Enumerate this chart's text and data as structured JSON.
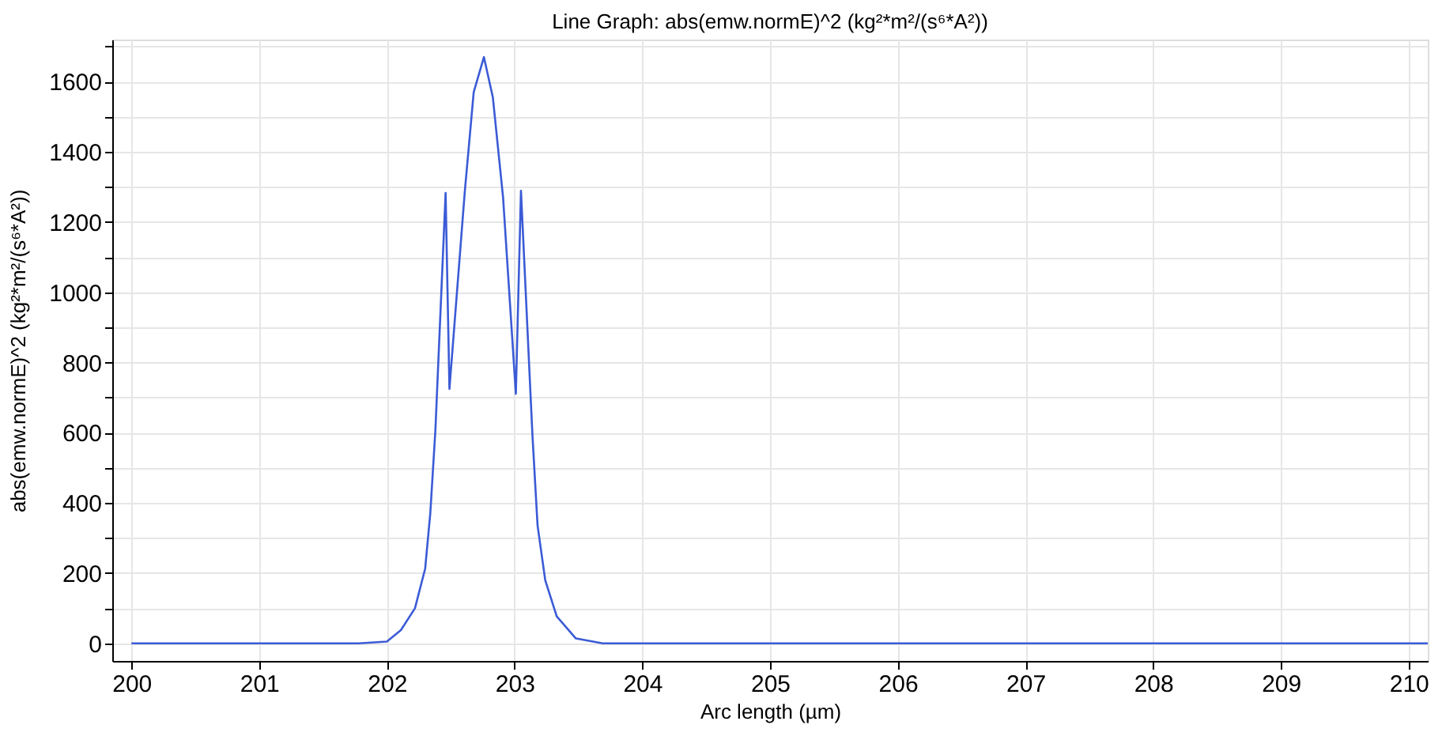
{
  "chart_data": {
    "type": "line",
    "title": "Line Graph: abs(emw.normE)^2 (kg²*m²/(s⁶*A²))",
    "xlabel": "Arc length (µm)",
    "ylabel": "abs(emw.normE)^2 (kg²*m²/(s⁶*A²))",
    "x": [
      200,
      201,
      201.78,
      202,
      202.11,
      202.22,
      202.3,
      202.34,
      202.38,
      202.46,
      202.49,
      202.61,
      202.68,
      202.76,
      202.83,
      202.91,
      203.01,
      203.05,
      203.14,
      203.18,
      203.24,
      203.33,
      203.48,
      203.69,
      204,
      205,
      206,
      207,
      208,
      209,
      210,
      210.15
    ],
    "series": [
      {
        "color": "#3b5bd6",
        "values": [
          0,
          0,
          0,
          5,
          38,
          100,
          213,
          370,
          607,
          1283,
          725,
          1286,
          1570,
          1670,
          1555,
          1270,
          711,
          1289,
          592,
          336,
          180,
          77,
          14,
          0,
          0,
          0,
          0,
          0,
          0,
          0,
          0,
          0
        ]
      }
    ],
    "xlim": [
      199.85,
      210.15
    ],
    "xticks": [
      200,
      201,
      202,
      203,
      204,
      205,
      206,
      207,
      208,
      209,
      210
    ],
    "ylim": [
      -50,
      1720
    ],
    "yticks": [
      0,
      {
        "value": 100,
        "label": null
      },
      200,
      {
        "value": 300,
        "label": null
      },
      400,
      {
        "value": 500,
        "label": null
      },
      600,
      {
        "value": 700,
        "label": null
      },
      800,
      {
        "value": 900,
        "label": null
      },
      1000,
      {
        "value": 1100,
        "label": null
      },
      1200,
      {
        "value": 1300,
        "label": null
      },
      1400,
      {
        "value": 1500,
        "label": null
      },
      1600,
      {
        "value": 1700,
        "label": null
      }
    ],
    "grid": true,
    "line_style": "solid",
    "marker": "none"
  }
}
